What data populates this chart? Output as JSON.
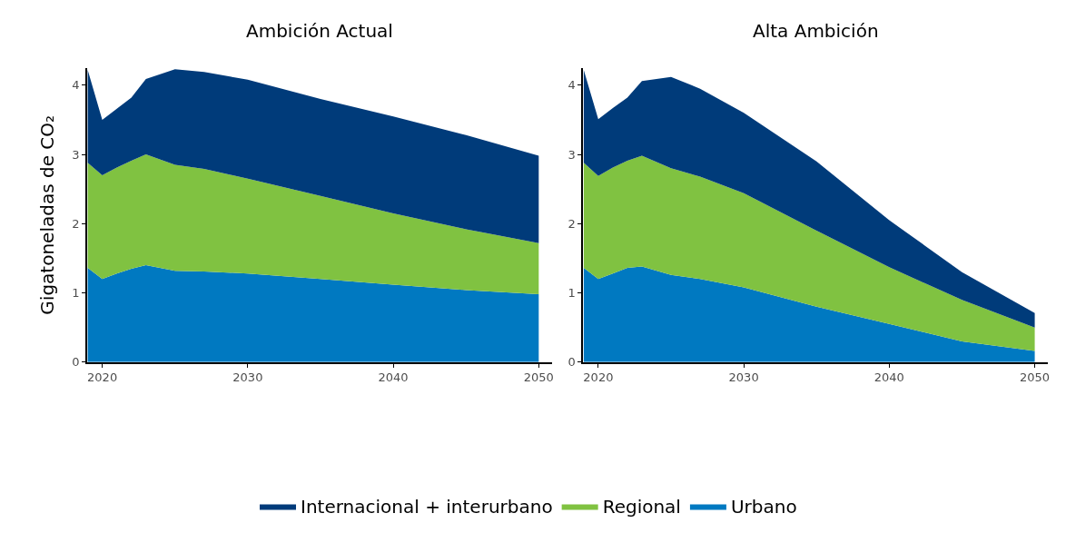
{
  "chart_data": [
    {
      "type": "area",
      "title": "Ambición Actual",
      "ylabel": "Gigatoneladas de CO₂",
      "stacked": true,
      "legend": "bottom",
      "x": [
        2019,
        2020,
        2021,
        2022,
        2023,
        2025,
        2027,
        2030,
        2035,
        2040,
        2045,
        2050
      ],
      "xlim": [
        2018.95,
        2050.9
      ],
      "xticks": [
        2020,
        2030,
        2040,
        2050
      ],
      "ylim": [
        0,
        4.25
      ],
      "yticks": [
        0,
        1,
        2,
        3,
        4
      ],
      "series": [
        {
          "name": "Urbano",
          "color": "#0079c1",
          "values": [
            1.36,
            1.2,
            1.28,
            1.35,
            1.4,
            1.32,
            1.31,
            1.28,
            1.2,
            1.12,
            1.04,
            0.98
          ]
        },
        {
          "name": "Regional",
          "color": "#80c241",
          "values": [
            1.52,
            1.5,
            1.53,
            1.56,
            1.6,
            1.53,
            1.48,
            1.37,
            1.2,
            1.03,
            0.88,
            0.74
          ]
        },
        {
          "name": "Internacional + interurbano",
          "color": "#003b7a",
          "values": [
            1.34,
            0.8,
            0.85,
            0.91,
            1.09,
            1.38,
            1.4,
            1.43,
            1.4,
            1.4,
            1.36,
            1.26
          ]
        }
      ]
    },
    {
      "type": "area",
      "title": "Alta Ambición",
      "stacked": true,
      "legend": "bottom",
      "x": [
        2019,
        2020,
        2021,
        2022,
        2023,
        2025,
        2027,
        2030,
        2035,
        2040,
        2045,
        2050
      ],
      "xlim": [
        2018.95,
        2050.9
      ],
      "xticks": [
        2020,
        2030,
        2040,
        2050
      ],
      "ylim": [
        0,
        4.25
      ],
      "yticks": [
        0,
        1,
        2,
        3,
        4
      ],
      "series": [
        {
          "name": "Urbano",
          "color": "#0079c1",
          "values": [
            1.36,
            1.2,
            1.28,
            1.36,
            1.38,
            1.26,
            1.2,
            1.08,
            0.8,
            0.55,
            0.3,
            0.16
          ]
        },
        {
          "name": "Regional",
          "color": "#80c241",
          "values": [
            1.52,
            1.49,
            1.53,
            1.55,
            1.6,
            1.54,
            1.48,
            1.36,
            1.1,
            0.82,
            0.6,
            0.34
          ]
        },
        {
          "name": "Internacional + interurbano",
          "color": "#003b7a",
          "values": [
            1.34,
            0.82,
            0.86,
            0.91,
            1.08,
            1.32,
            1.27,
            1.16,
            1.0,
            0.68,
            0.4,
            0.21
          ]
        }
      ]
    }
  ]
}
